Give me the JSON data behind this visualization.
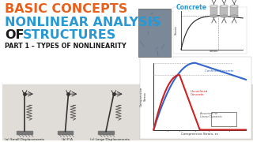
{
  "bg_color": "#f2f0ec",
  "title_line1": "BASIC CONCEPTS",
  "title_line2": "NONLINEAR ANALYSIS",
  "title_line3_of": "OF",
  "title_line3_rest": "STRUCTURES",
  "title_color_orange": "#e8601a",
  "title_color_blue": "#2899d4",
  "title_color_dark": "#1a1a1a",
  "part_line": "PART 1 – TYPES OF NONLINEARITY",
  "concrete_label": "Concrete",
  "concrete_label_color": "#2899d4",
  "top_bg": "#ffffff",
  "bottom_bg": "#e0ddd8",
  "graph_bg": "#ffffff",
  "curve_confined_color": "#3366cc",
  "curve_unconfined_color": "#cc2222",
  "photo_color": "#7a8898",
  "small_graph_color": "#333333"
}
